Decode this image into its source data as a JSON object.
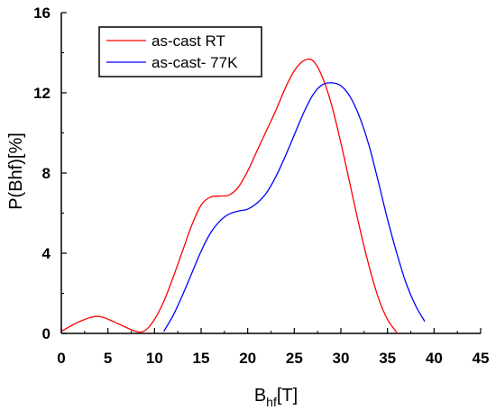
{
  "chart_data": {
    "type": "line",
    "title": "",
    "xlabel": "B",
    "xlabel_sub": "hf",
    "xlabel_suffix": "[T]",
    "ylabel": "P(Bhf)[%]",
    "xlim": [
      0,
      45
    ],
    "ylim": [
      0,
      16
    ],
    "x_ticks": [
      0,
      5,
      10,
      15,
      20,
      25,
      30,
      35,
      40,
      45
    ],
    "x_tick_labels": [
      "0",
      "5",
      "10",
      "15",
      "20",
      "25",
      "30",
      "35",
      "40",
      "45"
    ],
    "y_ticks": [
      0,
      4,
      8,
      12,
      16
    ],
    "y_tick_labels": [
      "0",
      "4",
      "8",
      "12",
      "16"
    ],
    "grid": false,
    "legend_position": "top-left",
    "series": [
      {
        "name": "as-cast RT",
        "color": "#ff0000",
        "x": [
          0,
          2,
          4,
          6,
          8,
          9,
          10,
          11,
          12,
          13,
          14,
          15,
          16,
          17,
          18,
          19,
          20,
          21,
          22,
          23,
          24,
          25,
          26,
          27,
          28,
          29,
          30,
          31,
          32,
          33,
          34,
          35,
          36
        ],
        "y": [
          0.1,
          0.6,
          0.85,
          0.5,
          0.1,
          0.15,
          0.7,
          1.6,
          2.8,
          4.1,
          5.4,
          6.4,
          6.8,
          6.85,
          6.9,
          7.3,
          8.1,
          9.1,
          10.1,
          11.1,
          12.2,
          13.1,
          13.6,
          13.6,
          12.8,
          11.4,
          9.5,
          7.4,
          5.3,
          3.4,
          1.8,
          0.7,
          0.05
        ]
      },
      {
        "name": "as-cast- 77K",
        "color": "#0000ff",
        "x": [
          11,
          12,
          13,
          14,
          15,
          16,
          17,
          18,
          19,
          20,
          21,
          22,
          23,
          24,
          25,
          26,
          27,
          28,
          29,
          30,
          31,
          32,
          33,
          34,
          35,
          36,
          37,
          38,
          39
        ],
        "y": [
          0.1,
          0.9,
          1.9,
          3.0,
          4.1,
          5.0,
          5.6,
          5.95,
          6.1,
          6.2,
          6.5,
          7.0,
          7.8,
          8.8,
          9.9,
          11.0,
          11.9,
          12.4,
          12.5,
          12.35,
          11.8,
          10.8,
          9.4,
          7.6,
          5.7,
          4.0,
          2.5,
          1.4,
          0.6
        ]
      }
    ]
  }
}
